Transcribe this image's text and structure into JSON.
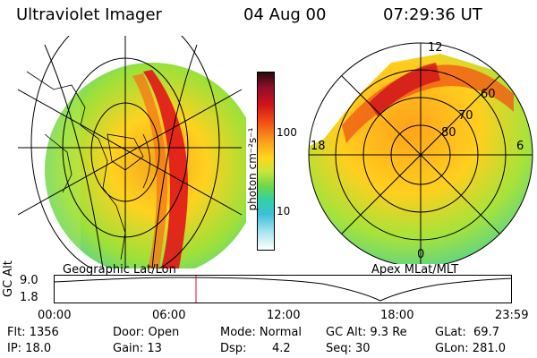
{
  "header": {
    "instrument": "Ultraviolet Imager",
    "date": "04 Aug 00",
    "time": "07:29:36 UT"
  },
  "colorbar": {
    "unit_label": "photon cm⁻²s⁻¹",
    "ticks": [
      "100",
      "10"
    ]
  },
  "left_panel": {
    "caption": "Geographic Lat/Lon"
  },
  "right_panel": {
    "caption": "Apex MLat/MLT",
    "mlt_labels": [
      "12",
      "18",
      "6",
      "0"
    ],
    "lat_labels": [
      "60",
      "70",
      "80"
    ]
  },
  "orbit_plot": {
    "ylabel": "GC Alt",
    "yticks": [
      "9.0",
      "1.8"
    ],
    "xticks": [
      "00:00",
      "06:00",
      "12:00",
      "18:00",
      "23:59"
    ],
    "marker_time": "07:29"
  },
  "stats": {
    "flt": "Flt: 1356",
    "ip": "IP: 18.0",
    "door": "Door: Open",
    "gain": "Gain: 13",
    "mode": "Mode: Normal",
    "dsp_label": "Dsp:",
    "dsp_value": "4.2",
    "gc_alt": "GC Alt: 9.3 Re",
    "seq": "Seq: 30",
    "glat": "GLat:  69.7",
    "glon": "GLon: 281.0"
  }
}
